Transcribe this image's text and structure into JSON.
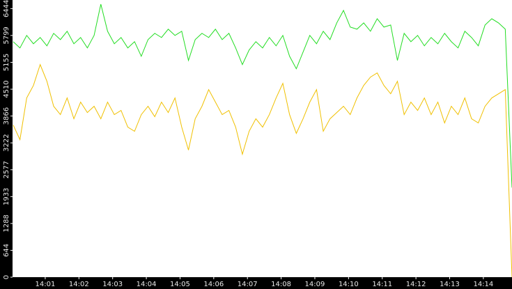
{
  "chart_data": {
    "type": "line",
    "x": [
      0.05,
      0.25,
      0.45,
      0.65,
      0.85,
      1.05,
      1.25,
      1.45,
      1.65,
      1.85,
      2.05,
      2.25,
      2.45,
      2.65,
      2.85,
      3.05,
      3.25,
      3.45,
      3.65,
      3.85,
      4.05,
      4.25,
      4.45,
      4.65,
      4.85,
      5.05,
      5.25,
      5.45,
      5.65,
      5.85,
      6.05,
      6.25,
      6.45,
      6.65,
      6.85,
      7.05,
      7.25,
      7.45,
      7.65,
      7.85,
      8.05,
      8.25,
      8.45,
      8.65,
      8.85,
      9.05,
      9.25,
      9.45,
      9.65,
      9.85,
      10.05,
      10.25,
      10.45,
      10.65,
      10.85,
      11.05,
      11.25,
      11.45,
      11.65,
      11.85,
      12.05,
      12.25,
      12.45,
      12.65,
      12.85,
      13.05,
      13.25,
      13.45,
      13.65,
      13.85,
      14.05,
      14.25,
      14.45,
      14.65,
      14.85
    ],
    "series": [
      {
        "color": "#22dd22",
        "values": [
          5650,
          5500,
          5800,
          5600,
          5750,
          5550,
          5850,
          5700,
          5900,
          5600,
          5750,
          5500,
          5800,
          6550,
          5900,
          5600,
          5750,
          5500,
          5650,
          5300,
          5700,
          5850,
          5750,
          5950,
          5800,
          5900,
          5200,
          5700,
          5850,
          5750,
          5950,
          5700,
          5850,
          5500,
          5100,
          5450,
          5650,
          5500,
          5750,
          5550,
          5800,
          5300,
          5000,
          5400,
          5800,
          5600,
          5900,
          5700,
          6100,
          6400,
          6000,
          5950,
          6100,
          5900,
          6200,
          6000,
          6050,
          5200,
          5850,
          5650,
          5800,
          5550,
          5750,
          5600,
          5850,
          5650,
          5500,
          5900,
          5750,
          5550,
          6050,
          6200,
          6100,
          5950,
          2150
        ]
      },
      {
        "color": "#f0c000",
        "values": [
          3650,
          3300,
          4300,
          4600,
          5100,
          4700,
          4100,
          3900,
          4300,
          3800,
          4200,
          3950,
          4100,
          3800,
          4200,
          3900,
          4000,
          3600,
          3500,
          3900,
          4100,
          3850,
          4200,
          3950,
          4300,
          3600,
          3050,
          3800,
          4100,
          4500,
          4200,
          3900,
          4000,
          3600,
          2950,
          3500,
          3800,
          3600,
          3900,
          4300,
          4650,
          3900,
          3450,
          3800,
          4200,
          4500,
          3500,
          3800,
          3950,
          4100,
          3900,
          4300,
          4600,
          4800,
          4900,
          4600,
          4400,
          4700,
          3900,
          4200,
          4000,
          4300,
          3900,
          4200,
          3700,
          4100,
          3900,
          4300,
          3800,
          3700,
          4100,
          4300,
          4400,
          4500,
          0
        ]
      }
    ],
    "xlim": [
      0.03,
      14.85
    ],
    "xticks": [
      {
        "value": 1,
        "label": "14:01"
      },
      {
        "value": 2,
        "label": "14:02"
      },
      {
        "value": 3,
        "label": "14:03"
      },
      {
        "value": 4,
        "label": "14:04"
      },
      {
        "value": 5,
        "label": "14:05"
      },
      {
        "value": 6,
        "label": "14:06"
      },
      {
        "value": 7,
        "label": "14:07"
      },
      {
        "value": 8,
        "label": "14:08"
      },
      {
        "value": 9,
        "label": "14:09"
      },
      {
        "value": 10,
        "label": "14:10"
      },
      {
        "value": 11,
        "label": "14:11"
      },
      {
        "value": 12,
        "label": "14:12"
      },
      {
        "value": 13,
        "label": "14:13"
      },
      {
        "value": 14,
        "label": "14:14"
      }
    ],
    "ylim": [
      0,
      6650
    ],
    "yticks": [
      0,
      644,
      1288,
      1933,
      2577,
      3222,
      3866,
      4510,
      5155,
      5799,
      6444
    ]
  }
}
